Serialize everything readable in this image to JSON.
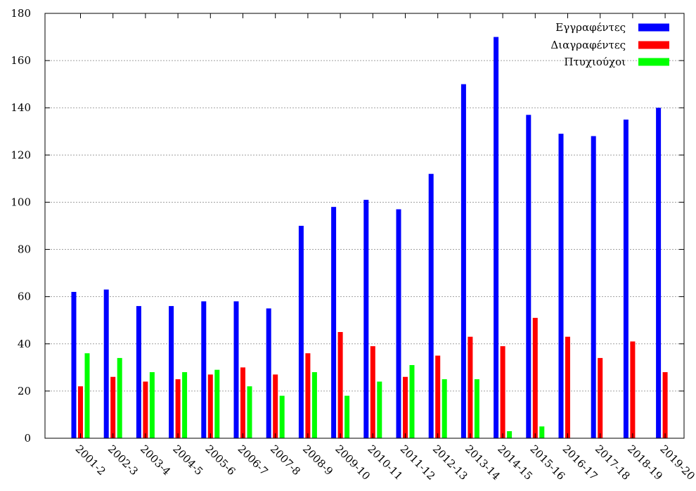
{
  "chart_data": {
    "type": "bar",
    "categories": [
      "2001-2",
      "2002-3",
      "2003-4",
      "2004-5",
      "2005-6",
      "2006-7",
      "2007-8",
      "2008-9",
      "2009-10",
      "2010-11",
      "2011-12",
      "2012-13",
      "2013-14",
      "2014-15",
      "2015-16",
      "2016-17",
      "2017-18",
      "2018-19",
      "2019-20"
    ],
    "series": [
      {
        "name": "Εγγραφέντες",
        "color": "#0000ff",
        "values": [
          62,
          63,
          56,
          56,
          58,
          58,
          55,
          90,
          98,
          101,
          97,
          112,
          150,
          170,
          137,
          129,
          128,
          135,
          140
        ]
      },
      {
        "name": "Διαγραφέντες",
        "color": "#ff0000",
        "values": [
          22,
          26,
          24,
          25,
          27,
          30,
          27,
          36,
          45,
          39,
          26,
          35,
          43,
          39,
          51,
          43,
          34,
          41,
          28
        ]
      },
      {
        "name": "Πτυχιούχοι",
        "color": "#00ff00",
        "values": [
          36,
          34,
          28,
          28,
          29,
          22,
          18,
          28,
          18,
          24,
          31,
          25,
          25,
          3,
          5,
          null,
          null,
          null,
          null
        ]
      }
    ],
    "ylim": [
      0,
      180
    ],
    "yticks": [
      "0",
      "20",
      "40",
      "60",
      "80",
      "100",
      "120",
      "140",
      "160",
      "180"
    ],
    "grid": true,
    "legend_position": "top-right"
  }
}
